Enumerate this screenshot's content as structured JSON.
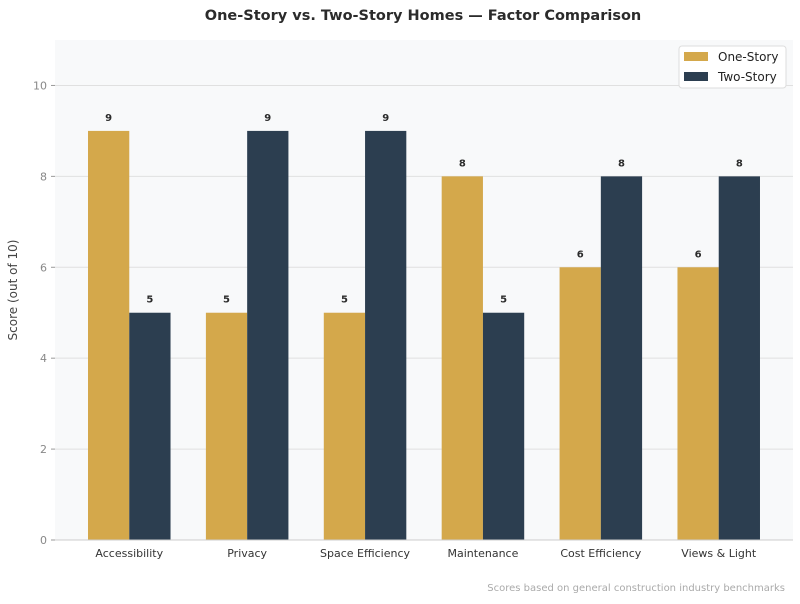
{
  "chart_data": {
    "type": "bar",
    "title": "One-Story vs. Two-Story Homes — Factor Comparison",
    "xlabel": "",
    "ylabel": "Score (out of 10)",
    "ylim": [
      0,
      11
    ],
    "yticks": [
      0,
      2,
      4,
      6,
      8,
      10
    ],
    "grid": true,
    "legend_position": "top-right",
    "categories": [
      "Accessibility",
      "Privacy",
      "Space Efficiency",
      "Maintenance",
      "Cost Efficiency",
      "Views & Light"
    ],
    "series": [
      {
        "name": "One-Story",
        "color": "#d4a84b",
        "values": [
          9,
          5,
          5,
          8,
          6,
          6
        ]
      },
      {
        "name": "Two-Story",
        "color": "#2c3e50",
        "values": [
          5,
          9,
          9,
          5,
          8,
          8
        ]
      }
    ],
    "footnote": "Scores based on general construction industry benchmarks",
    "background_color": "#f8f9fa"
  }
}
